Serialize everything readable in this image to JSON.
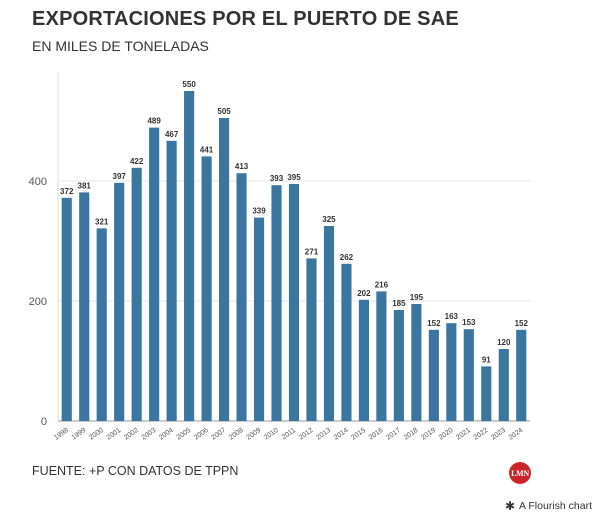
{
  "chart_data": {
    "type": "bar",
    "title": "EXPORTACIONES POR EL PUERTO DE SAE",
    "subtitle": "EN MILES DE TONELADAS",
    "categories": [
      "1998",
      "1999",
      "2000",
      "2001",
      "2002",
      "2003",
      "2004",
      "2005",
      "2006",
      "2007",
      "2008",
      "2009",
      "2010",
      "2011",
      "2012",
      "2013",
      "2014",
      "2015",
      "2016",
      "2017",
      "2018",
      "2019",
      "2020",
      "2021",
      "2022",
      "2023",
      "2024"
    ],
    "values": [
      372,
      381,
      321,
      397,
      422,
      489,
      467,
      550,
      441,
      505,
      413,
      339,
      393,
      395,
      271,
      325,
      262,
      202,
      216,
      185,
      195,
      152,
      163,
      153,
      91,
      120,
      152
    ],
    "yticks": [
      "0",
      "200",
      "400"
    ],
    "ylim": [
      0,
      560
    ],
    "grid": true,
    "bar_color": "#3a76a0"
  },
  "footer": {
    "source": "FUENTE: +P CON DATOS DE TPPN",
    "logo_text": "LMN",
    "logo_color": "#c8262b",
    "flourish_label": "A Flourish chart",
    "flourish_icon": "asterisk-icon"
  }
}
